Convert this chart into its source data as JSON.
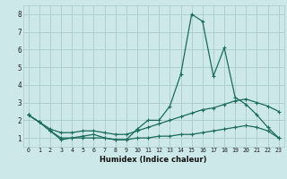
{
  "xlabel": "Humidex (Indice chaleur)",
  "bg_color": "#cce8e8",
  "grid_color": "#aacccc",
  "line_color": "#1a6b5a",
  "x": [
    0,
    1,
    2,
    3,
    4,
    5,
    6,
    7,
    8,
    9,
    10,
    11,
    12,
    13,
    14,
    15,
    16,
    17,
    18,
    19,
    20,
    21,
    22,
    23
  ],
  "line1": [
    2.3,
    1.9,
    1.4,
    0.9,
    1.0,
    1.1,
    1.2,
    1.0,
    0.9,
    0.9,
    1.5,
    2.0,
    2.0,
    2.8,
    4.6,
    8.0,
    7.6,
    4.5,
    6.1,
    3.3,
    2.9,
    2.3,
    1.6,
    1.0
  ],
  "line2": [
    2.3,
    1.9,
    1.5,
    1.3,
    1.3,
    1.4,
    1.4,
    1.3,
    1.2,
    1.2,
    1.4,
    1.6,
    1.8,
    2.0,
    2.2,
    2.4,
    2.6,
    2.7,
    2.9,
    3.1,
    3.2,
    3.0,
    2.8,
    2.5
  ],
  "line3": [
    2.3,
    1.9,
    1.4,
    1.0,
    1.0,
    1.0,
    1.0,
    1.0,
    0.9,
    0.9,
    1.0,
    1.0,
    1.1,
    1.1,
    1.2,
    1.2,
    1.3,
    1.4,
    1.5,
    1.6,
    1.7,
    1.6,
    1.4,
    1.0
  ],
  "ylim": [
    0.5,
    8.5
  ],
  "xlim": [
    -0.5,
    23.5
  ],
  "yticks": [
    1,
    2,
    3,
    4,
    5,
    6,
    7,
    8
  ],
  "xticks": [
    0,
    1,
    2,
    3,
    4,
    5,
    6,
    7,
    8,
    9,
    10,
    11,
    12,
    13,
    14,
    15,
    16,
    17,
    18,
    19,
    20,
    21,
    22,
    23
  ]
}
